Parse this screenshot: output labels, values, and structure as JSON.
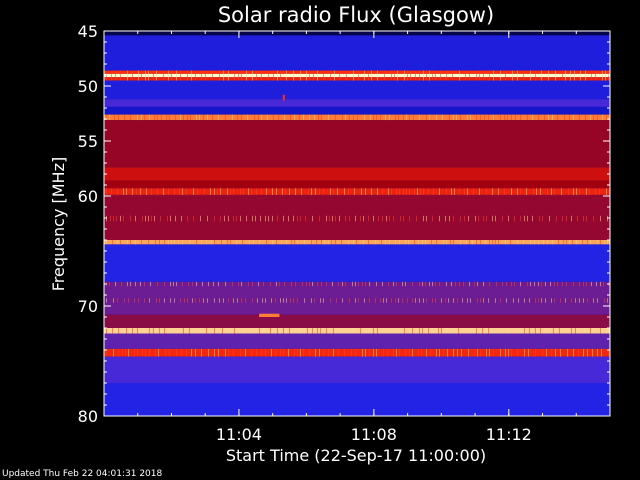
{
  "chart_data": {
    "type": "heatmap",
    "title": "Solar radio Flux (Glasgow)",
    "xlabel": "Start Time (22-Sep-17 11:00:00)",
    "ylabel": "Frequency [MHz]",
    "x_unit": "minutes after 11:00:00",
    "xlim": [
      0,
      15
    ],
    "ylim": [
      45,
      80
    ],
    "y_inverted": true,
    "x_ticks": [
      {
        "value": 4,
        "label": "11:04"
      },
      {
        "value": 8,
        "label": "11:08"
      },
      {
        "value": 12,
        "label": "11:12"
      }
    ],
    "y_ticks": [
      {
        "value": 45,
        "label": "45"
      },
      {
        "value": 50,
        "label": "50"
      },
      {
        "value": 55,
        "label": "55"
      },
      {
        "value": 60,
        "label": "60"
      },
      {
        "value": 70,
        "label": "70"
      },
      {
        "value": 80,
        "label": "80"
      }
    ],
    "colormap": [
      "#000000",
      "#1010c0",
      "#3030ff",
      "#6a1e9a",
      "#a00010",
      "#d01010",
      "#ff3010",
      "#ff9040",
      "#ffffd0"
    ],
    "frequency_bands": [
      {
        "from": 45.0,
        "to": 45.4,
        "level": 0.05
      },
      {
        "from": 45.4,
        "to": 48.6,
        "level": 0.18
      },
      {
        "from": 48.6,
        "to": 48.9,
        "level": 0.75
      },
      {
        "from": 48.9,
        "to": 49.2,
        "level": 1.0
      },
      {
        "from": 49.2,
        "to": 49.5,
        "level": 0.7
      },
      {
        "from": 49.5,
        "to": 51.2,
        "level": 0.18
      },
      {
        "from": 51.2,
        "to": 51.9,
        "level": 0.3
      },
      {
        "from": 51.9,
        "to": 52.6,
        "level": 0.15
      },
      {
        "from": 52.6,
        "to": 53.1,
        "level": 0.85
      },
      {
        "from": 53.1,
        "to": 57.4,
        "level": 0.48
      },
      {
        "from": 57.4,
        "to": 58.6,
        "level": 0.62
      },
      {
        "from": 58.6,
        "to": 59.3,
        "level": 0.5
      },
      {
        "from": 59.3,
        "to": 59.9,
        "level": 0.7
      },
      {
        "from": 59.9,
        "to": 64.0,
        "level": 0.47
      },
      {
        "from": 64.0,
        "to": 64.4,
        "level": 0.9
      },
      {
        "from": 64.4,
        "to": 67.8,
        "level": 0.2
      },
      {
        "from": 67.8,
        "to": 70.8,
        "level": 0.38
      },
      {
        "from": 70.8,
        "to": 72.0,
        "level": 0.45
      },
      {
        "from": 72.0,
        "to": 72.5,
        "level": 0.95
      },
      {
        "from": 72.5,
        "to": 73.9,
        "level": 0.35
      },
      {
        "from": 73.9,
        "to": 74.6,
        "level": 0.72
      },
      {
        "from": 74.6,
        "to": 77.0,
        "level": 0.3
      },
      {
        "from": 77.0,
        "to": 80.0,
        "level": 0.2
      }
    ],
    "bursts": [
      {
        "time": 5.3,
        "from": 50.8,
        "to": 51.3,
        "level": 0.75
      },
      {
        "time": 4.6,
        "from": 70.7,
        "to": 71.0,
        "level": 0.85,
        "duration": 0.6
      }
    ]
  },
  "footer": {
    "updated": "Updated Thu Feb 22 04:01:31 2018"
  }
}
